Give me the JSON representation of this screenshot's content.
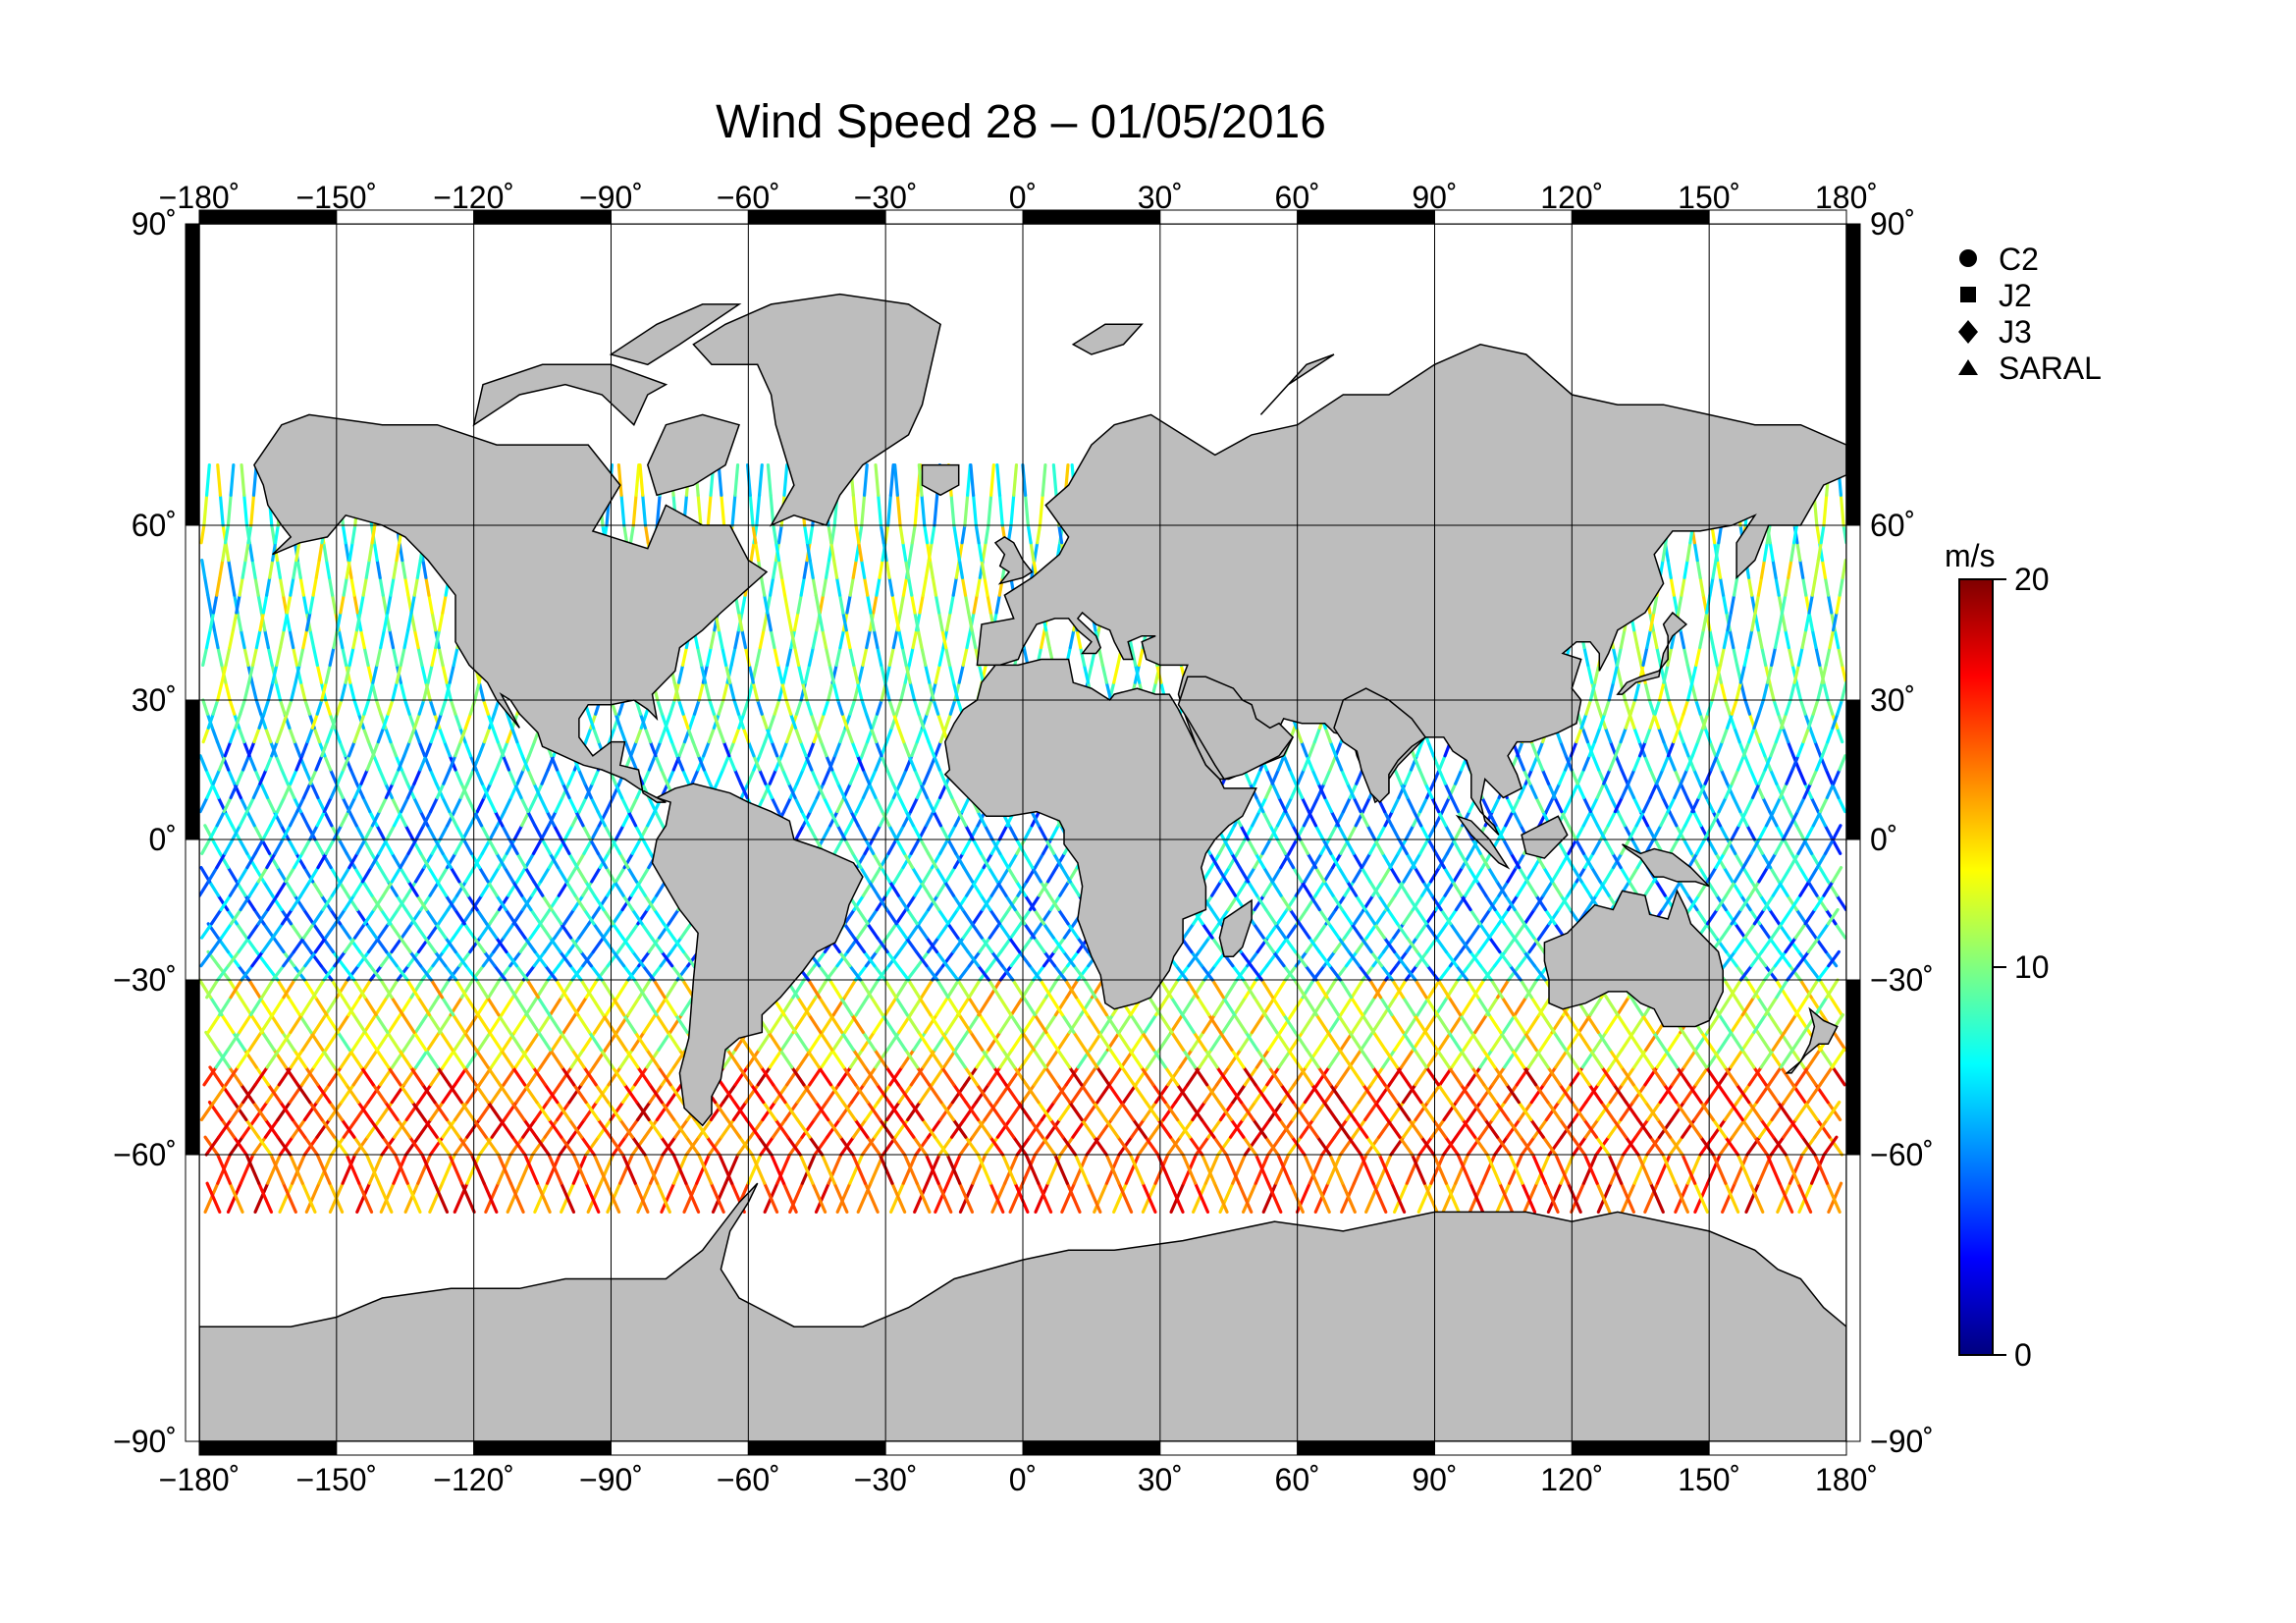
{
  "title": "Wind Speed 28 – 01/05/2016",
  "lon_ticks": [
    "−180˚",
    "−150˚",
    "−120˚",
    "−90˚",
    "−60˚",
    "−30˚",
    "0˚",
    "30˚",
    "60˚",
    "90˚",
    "120˚",
    "150˚",
    "180˚"
  ],
  "lat_ticks_left": [
    "90˚",
    "60˚",
    "30˚",
    "0˚",
    "−30˚",
    "−60˚",
    "−90˚"
  ],
  "lat_ticks_right": [
    "90˚",
    "60˚",
    "30˚",
    "0˚",
    "−30˚",
    "−60˚",
    "−90˚"
  ],
  "legend": [
    {
      "label": "C2",
      "symbol": "circle"
    },
    {
      "label": "J2",
      "symbol": "square"
    },
    {
      "label": "J3",
      "symbol": "diamond"
    },
    {
      "label": "SARAL",
      "symbol": "triangle"
    }
  ],
  "colorbar": {
    "unit": "m/s",
    "min": 0,
    "max": 20,
    "tick_labels": [
      "20",
      "10",
      "0"
    ],
    "tick_values": [
      20,
      10,
      0
    ],
    "colors": [
      "#00007f",
      "#0000ff",
      "#0080ff",
      "#00ffff",
      "#80ff80",
      "#ffff00",
      "#ff8000",
      "#ff0000",
      "#7f0000"
    ]
  },
  "map_colors": {
    "land": "#bdbdbd",
    "ocean": "#ffffff",
    "coast": "#000000"
  }
}
